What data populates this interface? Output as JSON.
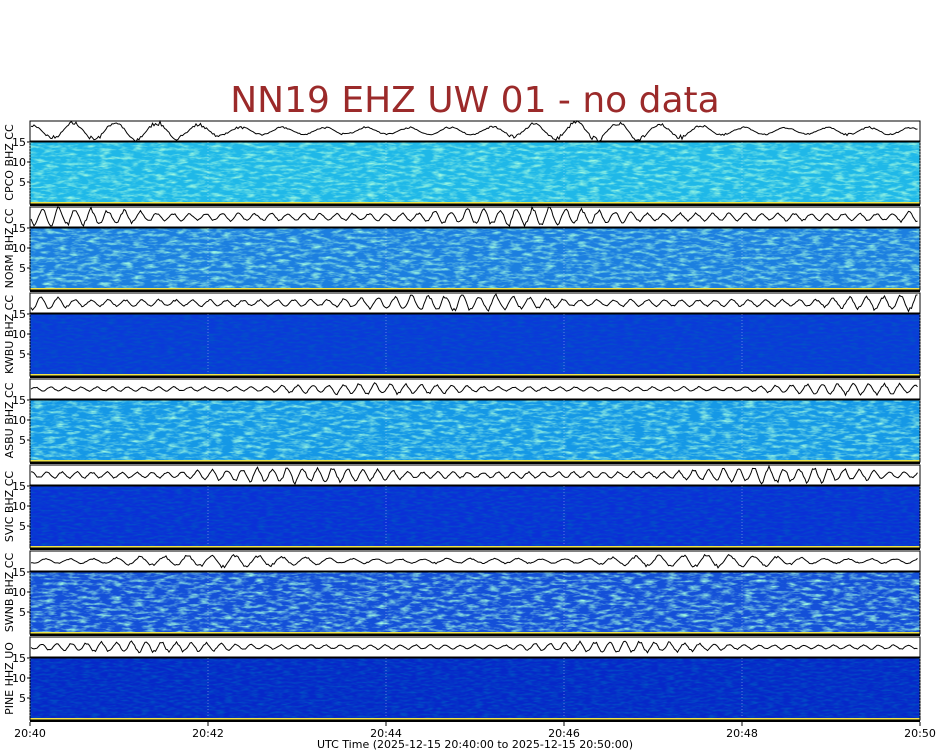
{
  "chart_data": {
    "type": "spectrogram",
    "title": "NN19 EHZ UW 01 - no data",
    "x_label": "UTC Time (2025-12-15 20:40:00 to 2025-12-15 20:50:00)",
    "xlim": [
      "20:40",
      "20:50"
    ],
    "xticks": [
      "20:40",
      "20:42",
      "20:44",
      "20:46",
      "20:48",
      "20:50"
    ],
    "panels": [
      {
        "label": "CPCO BHZ CC",
        "ylim": [
          0,
          15
        ],
        "yticks": [
          5,
          10,
          15
        ]
      },
      {
        "label": "NORM BHZ CC",
        "ylim": [
          0,
          15
        ],
        "yticks": [
          5,
          10,
          15
        ]
      },
      {
        "label": "KWBU BHZ CC",
        "ylim": [
          0,
          15
        ],
        "yticks": [
          5,
          10,
          15
        ]
      },
      {
        "label": "ASBU BHZ CC",
        "ylim": [
          0,
          15
        ],
        "yticks": [
          5,
          10,
          15
        ]
      },
      {
        "label": "SVIC BHZ CC",
        "ylim": [
          0,
          15
        ],
        "yticks": [
          5,
          10,
          15
        ]
      },
      {
        "label": "SWNB BHZ CC",
        "ylim": [
          0,
          15
        ],
        "yticks": [
          5,
          10,
          15
        ]
      },
      {
        "label": "PINE HHZ UO",
        "ylim": [
          0,
          15
        ],
        "yticks": [
          5,
          10,
          15
        ]
      }
    ]
  }
}
